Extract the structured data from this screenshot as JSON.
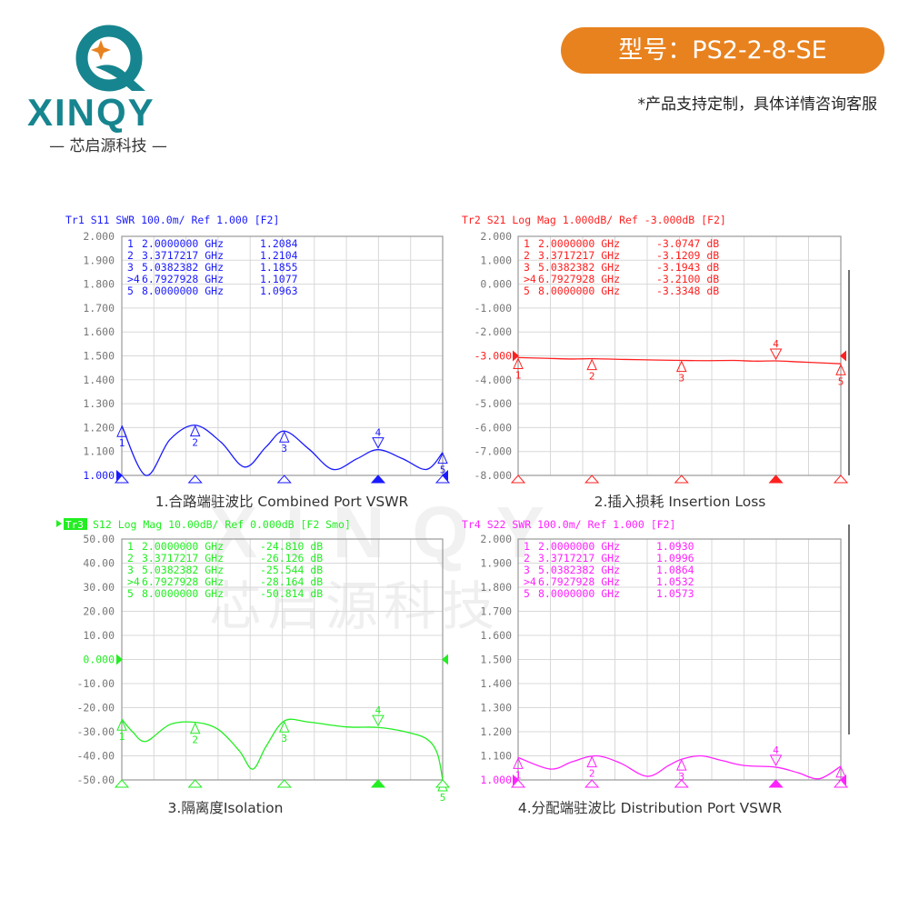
{
  "brand": {
    "logo_text": "XINQY",
    "logo_subtitle": "— 芯启源科技 —",
    "colors": {
      "teal": "#16858f",
      "orange": "#e8821f"
    }
  },
  "header": {
    "model_label": "型号：PS2-2-8-SE",
    "note": "*产品支持定制，具体详情咨询客服",
    "pill_color": "#e8821f"
  },
  "watermark": {
    "text": "芯启源科技"
  },
  "chart_data": [
    {
      "type": "line",
      "header": "Tr1 S11 SWR 100.0m/ Ref 1.000 [F2]",
      "caption": "1.合路端驻波比 Combined Port VSWR",
      "color": "#1a1aff",
      "ylim": [
        1.0,
        2.0
      ],
      "yticks": [
        "2.000",
        "1.900",
        "1.800",
        "1.700",
        "1.600",
        "1.500",
        "1.400",
        "1.300",
        "1.200",
        "1.100",
        "1.000"
      ],
      "ref_value": 1.0,
      "xlim": [
        2,
        8
      ],
      "grid": true,
      "markers": [
        {
          "id": "1",
          "freq": "2.0000000 GHz",
          "value": "1.2084",
          "x": 2.0,
          "y": 1.2084
        },
        {
          "id": ">4",
          "freq": "6.7927928 GHz",
          "value": "1.1077",
          "x": 6.7927928,
          "y": 1.1077,
          "active": true
        },
        {
          "id": "2",
          "freq": "3.3717217 GHz",
          "value": "1.2104",
          "x": 3.3717217,
          "y": 1.2104
        },
        {
          "id": "3",
          "freq": "5.0382382 GHz",
          "value": "1.1855",
          "x": 5.0382382,
          "y": 1.1855
        },
        {
          "id": "5",
          "freq": "8.0000000 GHz",
          "value": "1.0963",
          "x": 8.0,
          "y": 1.0963
        }
      ],
      "trace": {
        "x": [
          2,
          2.45,
          2.9,
          3.37,
          3.85,
          4.3,
          4.7,
          5.04,
          5.5,
          5.95,
          6.4,
          6.79,
          7.25,
          7.7,
          8
        ],
        "y": [
          1.208,
          1.0,
          1.15,
          1.21,
          1.14,
          1.035,
          1.12,
          1.1855,
          1.11,
          1.025,
          1.07,
          1.1077,
          1.07,
          1.025,
          1.096
        ]
      }
    },
    {
      "type": "line",
      "header": "Tr2 S21 Log Mag 1.000dB/ Ref -3.000dB [F2]",
      "caption": "2.插入损耗 Insertion Loss",
      "color": "#ff2020",
      "ylim": [
        -8.0,
        2.0
      ],
      "yticks": [
        "2.000",
        "1.000",
        "0.000",
        "-1.000",
        "-2.000",
        "-3.000",
        "-4.000",
        "-5.000",
        "-6.000",
        "-7.000",
        "-8.000"
      ],
      "ref_value": -3.0,
      "xlim": [
        2,
        8
      ],
      "grid": true,
      "markers": [
        {
          "id": "1",
          "freq": "2.0000000 GHz",
          "value": "-3.0747 dB",
          "x": 2.0,
          "y": -3.0747
        },
        {
          "id": "2",
          "freq": "3.3717217 GHz",
          "value": "-3.1209 dB",
          "x": 3.3717217,
          "y": -3.1209
        },
        {
          "id": "3",
          "freq": "5.0382382 GHz",
          "value": "-3.1943 dB",
          "x": 5.0382382,
          "y": -3.1943
        },
        {
          "id": ">4",
          "freq": "6.7927928 GHz",
          "value": "-3.2100 dB",
          "x": 6.7927928,
          "y": -3.21,
          "active": true
        },
        {
          "id": "5",
          "freq": "8.0000000 GHz",
          "value": "-3.3348 dB",
          "x": 8.0,
          "y": -3.3348
        }
      ],
      "trace": {
        "x": [
          2,
          2.5,
          3.0,
          3.37,
          4.0,
          4.5,
          5.04,
          5.5,
          6.0,
          6.4,
          6.79,
          7.2,
          7.6,
          8
        ],
        "y": [
          -3.07,
          -3.1,
          -3.13,
          -3.12,
          -3.15,
          -3.17,
          -3.19,
          -3.2,
          -3.19,
          -3.22,
          -3.21,
          -3.25,
          -3.29,
          -3.33
        ]
      }
    },
    {
      "type": "line",
      "header_tag": "Tr3",
      "header": "S12 Log Mag 10.00dB/ Ref 0.000dB [F2 Smo]",
      "caption": "3.隔离度Isolation",
      "color": "#22ee22",
      "ylim": [
        -50,
        50
      ],
      "yticks": [
        "50.00",
        "40.00",
        "30.00",
        "20.00",
        "10.00",
        "0.000",
        "-10.00",
        "-20.00",
        "-30.00",
        "-40.00",
        "-50.00"
      ],
      "ref_value": 0,
      "xlim": [
        2,
        8
      ],
      "grid": true,
      "markers": [
        {
          "id": "1",
          "freq": "2.0000000 GHz",
          "value": "-24.810 dB",
          "x": 2.0,
          "y": -24.81
        },
        {
          "id": "2",
          "freq": "3.3717217 GHz",
          "value": "-26.126 dB",
          "x": 3.3717217,
          "y": -26.126
        },
        {
          "id": "3",
          "freq": "5.0382382 GHz",
          "value": "-25.544 dB",
          "x": 5.0382382,
          "y": -25.544
        },
        {
          "id": ">4",
          "freq": "6.7927928 GHz",
          "value": "-28.164 dB",
          "x": 6.7927928,
          "y": -28.164,
          "active": true
        },
        {
          "id": "5",
          "freq": "8.0000000 GHz",
          "value": "-50.814 dB",
          "x": 8.0,
          "y": -50.814
        }
      ],
      "trace": {
        "x": [
          2,
          2.2,
          2.45,
          2.9,
          3.37,
          3.8,
          4.2,
          4.45,
          4.7,
          5.04,
          5.5,
          6.2,
          6.79,
          7.3,
          7.7,
          7.9,
          8
        ],
        "y": [
          -24.8,
          -30,
          -34,
          -27,
          -26.1,
          -29,
          -38,
          -45.5,
          -36,
          -25.5,
          -26,
          -28,
          -28.2,
          -30,
          -33,
          -39,
          -50
        ]
      }
    },
    {
      "type": "line",
      "header": "Tr4 S22 SWR 100.0m/ Ref 1.000 [F2]",
      "caption": "4.分配端驻波比 Distribution  Port VSWR",
      "color": "#ff22ff",
      "ylim": [
        1.0,
        2.0
      ],
      "yticks": [
        "2.000",
        "1.900",
        "1.800",
        "1.700",
        "1.600",
        "1.500",
        "1.400",
        "1.300",
        "1.200",
        "1.100",
        "1.000"
      ],
      "ref_value": 1.0,
      "xlim": [
        2,
        8
      ],
      "grid": true,
      "markers": [
        {
          "id": "1",
          "freq": "2.0000000 GHz",
          "value": "1.0930",
          "x": 2.0,
          "y": 1.093
        },
        {
          "id": "2",
          "freq": "3.3717217 GHz",
          "value": "1.0996",
          "x": 3.3717217,
          "y": 1.0996
        },
        {
          "id": "3",
          "freq": "5.0382382 GHz",
          "value": "1.0864",
          "x": 5.0382382,
          "y": 1.0864
        },
        {
          "id": ">4",
          "freq": "6.7927928 GHz",
          "value": "1.0532",
          "x": 6.7927928,
          "y": 1.0532,
          "active": true
        },
        {
          "id": "5",
          "freq": "8.0000000 GHz",
          "value": "1.0573",
          "x": 8.0,
          "y": 1.0573
        }
      ],
      "trace": {
        "x": [
          2,
          2.6,
          3.0,
          3.45,
          3.9,
          4.4,
          4.8,
          5.04,
          5.4,
          5.8,
          6.2,
          6.79,
          7.2,
          7.6,
          8
        ],
        "y": [
          1.093,
          1.045,
          1.075,
          1.1,
          1.07,
          1.015,
          1.06,
          1.086,
          1.1,
          1.08,
          1.06,
          1.053,
          1.03,
          1.005,
          1.057
        ]
      }
    }
  ]
}
